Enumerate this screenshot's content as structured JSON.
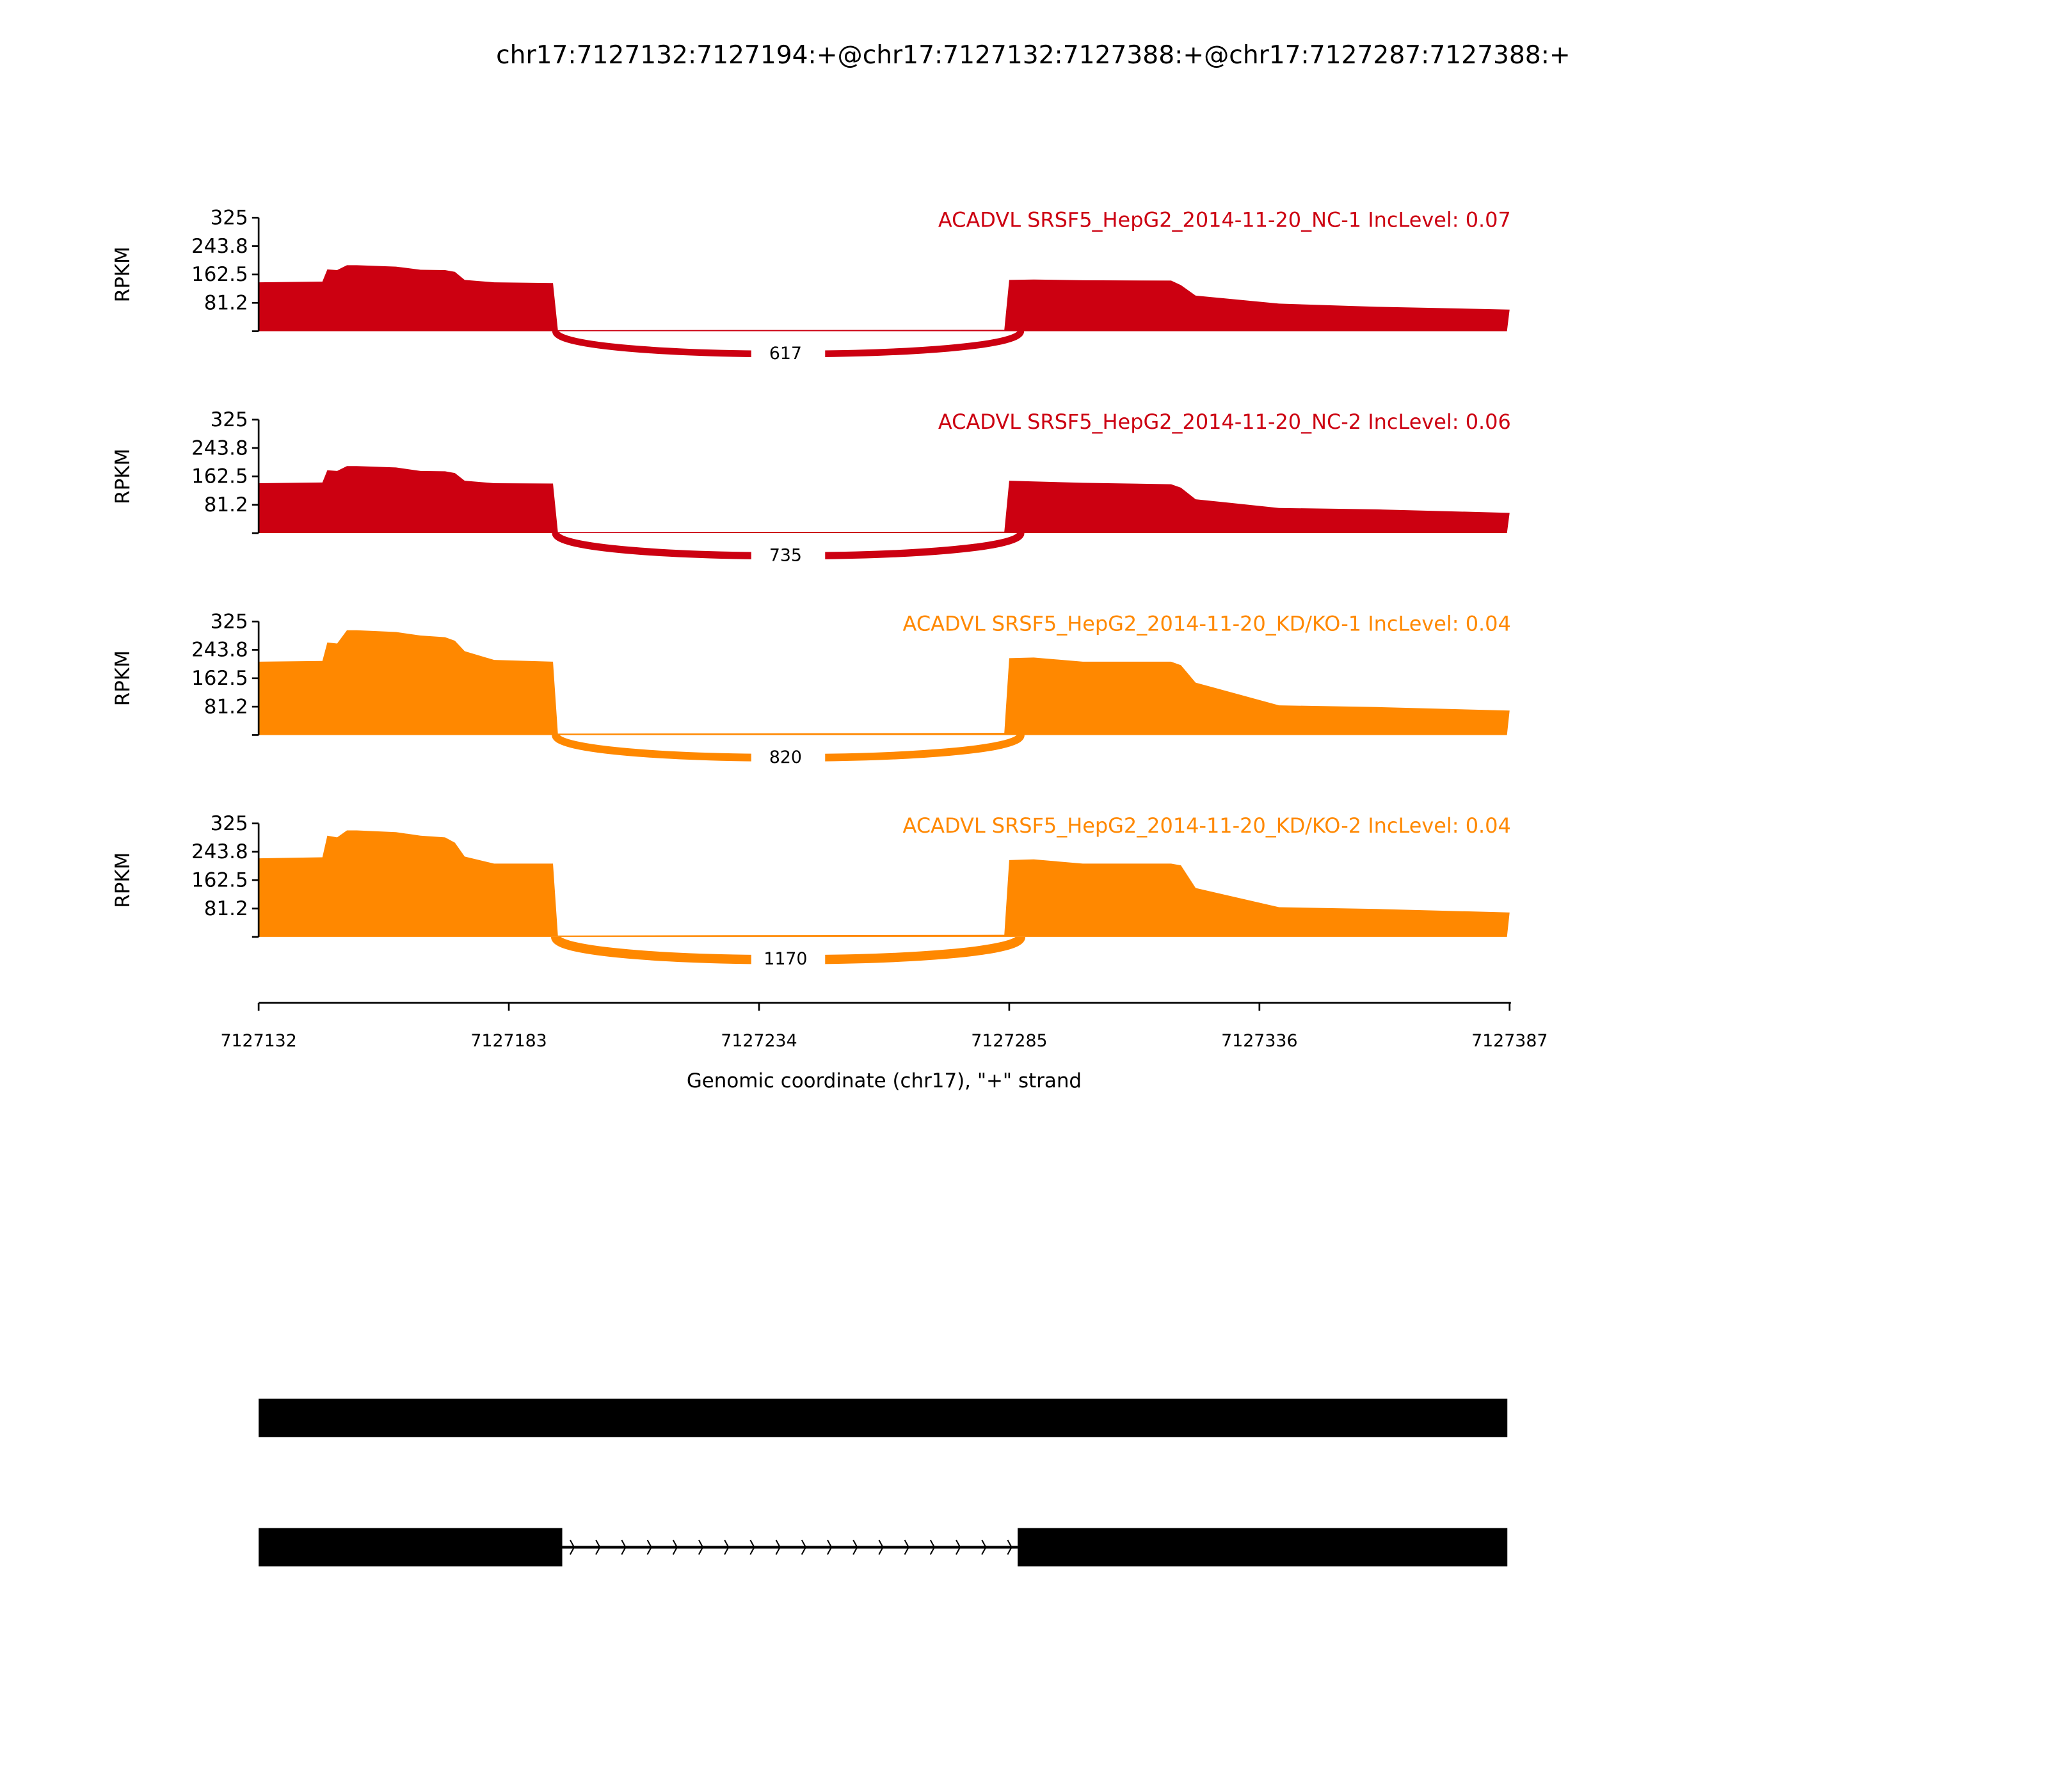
{
  "chart_data": {
    "type": "area",
    "title": "chr17:7127132:7127194:+@chr17:7127132:7127388:+@chr17:7127287:7127388:+",
    "xlabel": "Genomic coordinate (chr17), \"+\" strand",
    "ylabel": "RPKM",
    "xlim": [
      7127132,
      7127387
    ],
    "ylim": [
      0,
      325
    ],
    "x_ticks": [
      "7127132",
      "7127183",
      "7127234",
      "7127285",
      "7127336",
      "7127387"
    ],
    "y_ticks": [
      "81.2",
      "162.5",
      "243.8",
      "325"
    ],
    "positions": [
      7127132,
      7127145,
      7127146,
      7127148,
      7127150,
      7127152,
      7127160,
      7127165,
      7127170,
      7127172,
      7127174,
      7127180,
      7127192,
      7127193,
      7127284,
      7127285,
      7127290,
      7127300,
      7127318,
      7127320,
      7127323,
      7127340,
      7127360,
      7127387
    ],
    "tracks": [
      {
        "label": "ACADVL SRSF5_HepG2_2014-11-20_NC-1 IncLevel: 0.07",
        "color": "#cc0011",
        "junction_count": "617",
        "values": [
          140,
          142,
          177,
          175,
          189,
          189,
          185,
          176,
          175,
          170,
          147,
          140,
          138,
          3,
          4,
          147,
          148,
          146,
          145,
          132,
          102,
          79,
          70,
          62
        ]
      },
      {
        "label": "ACADVL SRSF5_HepG2_2014-11-20_NC-2 IncLevel: 0.06",
        "color": "#cc0011",
        "junction_count": "735",
        "values": [
          143,
          145,
          180,
          178,
          192,
          192,
          188,
          178,
          177,
          172,
          150,
          143,
          142,
          3,
          4,
          150,
          148,
          144,
          140,
          130,
          97,
          72,
          68,
          58
        ]
      },
      {
        "label": "ACADVL SRSF5_HepG2_2014-11-20_KD/KO-1 IncLevel: 0.04",
        "color": "#ff8800",
        "junction_count": "820",
        "values": [
          210,
          212,
          265,
          262,
          300,
          300,
          295,
          285,
          280,
          270,
          240,
          215,
          210,
          4,
          6,
          220,
          222,
          210,
          210,
          200,
          150,
          85,
          80,
          70
        ]
      },
      {
        "label": "ACADVL SRSF5_HepG2_2014-11-20_KD/KO-2 IncLevel: 0.04",
        "color": "#ff8800",
        "junction_count": "1170",
        "values": [
          225,
          228,
          290,
          285,
          305,
          305,
          300,
          290,
          285,
          270,
          230,
          210,
          210,
          4,
          6,
          220,
          222,
          210,
          210,
          205,
          140,
          85,
          80,
          70
        ]
      }
    ],
    "junction": {
      "start": 7127192,
      "end": 7127286
    },
    "gene_models": [
      {
        "exons": [
          [
            7127132,
            7127387
          ]
        ]
      },
      {
        "exons": [
          [
            7127132,
            7127194
          ],
          [
            7127287,
            7127387
          ]
        ]
      }
    ]
  }
}
